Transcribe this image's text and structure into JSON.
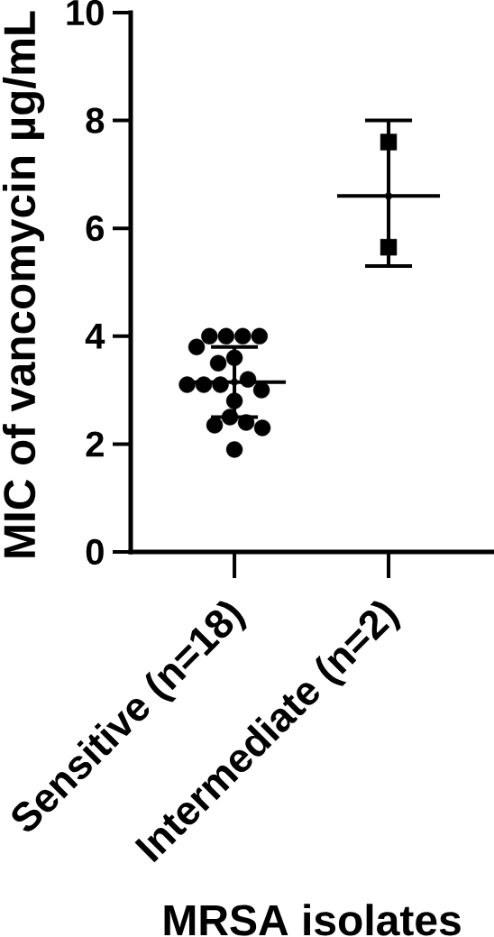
{
  "chart_data": {
    "type": "scatter",
    "xlabel": "MRSA isolates",
    "ylabel": "MIC of vancomycin µg/mL",
    "categories": [
      "Sensitive (n=18)",
      "Intermediate (n=2)"
    ],
    "ylim": [
      0,
      10
    ],
    "yticks": [
      0,
      2,
      4,
      6,
      8,
      10
    ],
    "series": [
      {
        "marker": "circle",
        "color": "#000000",
        "x": [
          "Sensitive (n=18)",
          "Sensitive (n=18)",
          "Sensitive (n=18)",
          "Sensitive (n=18)",
          "Sensitive (n=18)",
          "Sensitive (n=18)",
          "Sensitive (n=18)",
          "Sensitive (n=18)",
          "Sensitive (n=18)",
          "Sensitive (n=18)",
          "Sensitive (n=18)",
          "Sensitive (n=18)",
          "Sensitive (n=18)",
          "Sensitive (n=18)",
          "Sensitive (n=18)",
          "Sensitive (n=18)",
          "Sensitive (n=18)",
          "Sensitive (n=18)"
        ],
        "values": [
          4.0,
          4.0,
          4.0,
          4.0,
          3.8,
          3.6,
          3.5,
          3.2,
          3.1,
          3.1,
          3.1,
          3.0,
          2.8,
          2.5,
          2.4,
          2.35,
          2.3,
          1.9
        ]
      },
      {
        "marker": "square",
        "color": "#000000",
        "x": [
          "Intermediate (n=2)",
          "Intermediate (n=2)"
        ],
        "values": [
          7.6,
          5.65
        ]
      },
      {
        "color": "#000000",
        "x": [
          "Sensitive (n=18)",
          "Intermediate (n=2)"
        ],
        "values": [
          3.15,
          6.6
        ],
        "errors": [
          [
            2.5,
            3.8
          ],
          [
            5.3,
            8.0
          ]
        ]
      }
    ]
  }
}
